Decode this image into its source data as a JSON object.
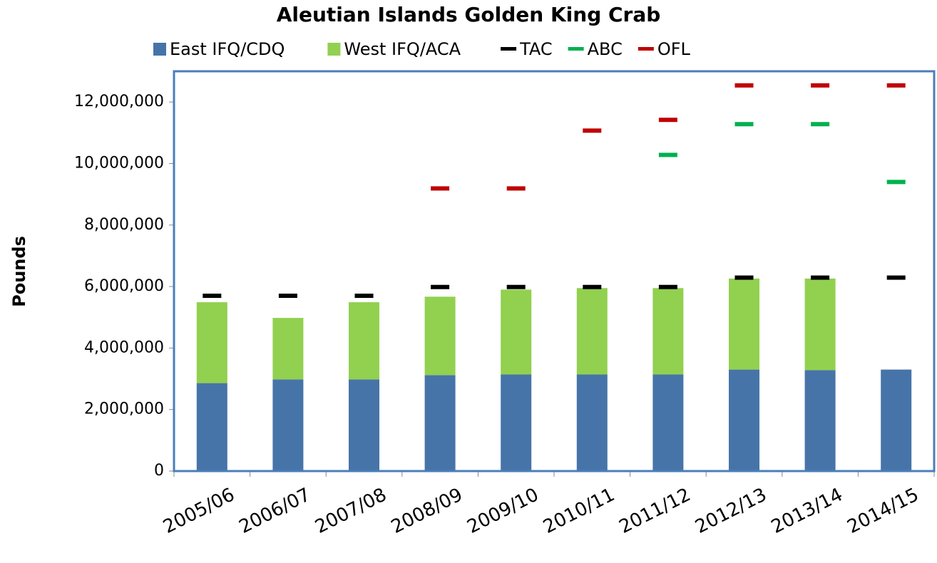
{
  "chart_data": {
    "type": "bar",
    "stacked": true,
    "title": "Aleutian Islands Golden King Crab",
    "y_label": "Pounds",
    "categories": [
      "2005/06",
      "2006/07",
      "2007/08",
      "2008/09",
      "2009/10",
      "2010/11",
      "2011/12",
      "2012/13",
      "2013/14",
      "2014/15"
    ],
    "series": [
      {
        "name": "East IFQ/CDQ",
        "color": "#4674a8",
        "type": "bar",
        "values": [
          2860000,
          2980000,
          2980000,
          3120000,
          3140000,
          3140000,
          3140000,
          3300000,
          3280000,
          3300000
        ]
      },
      {
        "name": "West IFQ/ACA",
        "color": "#92d050",
        "type": "bar",
        "values": [
          2630000,
          2000000,
          2510000,
          2550000,
          2760000,
          2810000,
          2810000,
          2960000,
          2980000,
          null
        ]
      },
      {
        "name": "TAC",
        "color": "#000000",
        "type": "marker",
        "values": [
          5700000,
          5700000,
          5700000,
          5985000,
          5985000,
          5985000,
          5985000,
          6290000,
          6290000,
          6290000
        ]
      },
      {
        "name": "ABC",
        "color": "#00b050",
        "type": "marker",
        "values": [
          null,
          null,
          null,
          null,
          null,
          null,
          10280000,
          11280000,
          11280000,
          9400000
        ]
      },
      {
        "name": "OFL",
        "color": "#c00000",
        "type": "marker",
        "values": [
          null,
          null,
          null,
          9190000,
          9190000,
          11070000,
          11420000,
          12540000,
          12540000,
          12540000
        ]
      }
    ],
    "ylim": [
      0,
      13000000
    ],
    "yticks": [
      {
        "value": 0,
        "label": "0"
      },
      {
        "value": 2000000,
        "label": "2,000,000"
      },
      {
        "value": 4000000,
        "label": "4,000,000"
      },
      {
        "value": 6000000,
        "label": "6,000,000"
      },
      {
        "value": 8000000,
        "label": "8,000,000"
      },
      {
        "value": 10000000,
        "label": "10,000,000"
      },
      {
        "value": 12000000,
        "label": "12,000,000"
      }
    ],
    "grid": false,
    "legend": "top"
  }
}
